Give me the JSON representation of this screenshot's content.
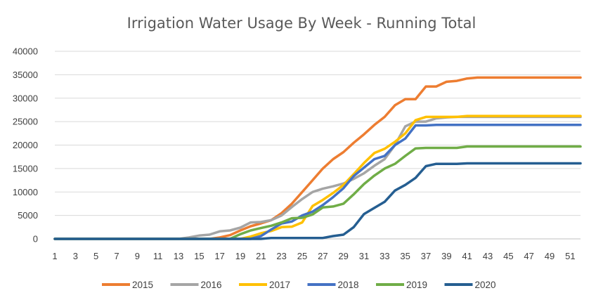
{
  "chart_data": {
    "type": "line",
    "title": "Irrigation Water Usage By Week - Running Total",
    "xlabel": "",
    "ylabel": "",
    "ylim": [
      0,
      40000
    ],
    "y_ticks": [
      "0",
      "5000",
      "10000",
      "15000",
      "20000",
      "25000",
      "30000",
      "35000",
      "40000"
    ],
    "x": [
      1,
      2,
      3,
      4,
      5,
      6,
      7,
      8,
      9,
      10,
      11,
      12,
      13,
      14,
      15,
      16,
      17,
      18,
      19,
      20,
      21,
      22,
      23,
      24,
      25,
      26,
      27,
      28,
      29,
      30,
      31,
      32,
      33,
      34,
      35,
      36,
      37,
      38,
      39,
      40,
      41,
      42,
      43,
      44,
      45,
      46,
      47,
      48,
      49,
      50,
      51,
      52
    ],
    "x_tick_labels": [
      "1",
      "3",
      "5",
      "7",
      "9",
      "11",
      "13",
      "15",
      "17",
      "19",
      "21",
      "23",
      "25",
      "27",
      "29",
      "31",
      "33",
      "35",
      "37",
      "39",
      "41",
      "43",
      "45",
      "47",
      "49",
      "51"
    ],
    "grid": "horizontal",
    "legend_position": "bottom",
    "series": [
      {
        "name": "2015",
        "color": "#ED7D31",
        "values": [
          0,
          0,
          0,
          0,
          0,
          0,
          0,
          0,
          0,
          0,
          0,
          0,
          0,
          0,
          0,
          0,
          300,
          800,
          1800,
          2700,
          3300,
          4000,
          5500,
          7500,
          10000,
          12500,
          15000,
          17000,
          18500,
          20500,
          22300,
          24300,
          26000,
          28500,
          29800,
          29800,
          32500,
          32500,
          33500,
          33700,
          34200,
          34400,
          34400,
          34400,
          34400,
          34400,
          34400,
          34400,
          34400,
          34400,
          34400,
          34400
        ]
      },
      {
        "name": "2016",
        "color": "#A5A5A5",
        "values": [
          0,
          0,
          0,
          0,
          0,
          0,
          0,
          0,
          0,
          0,
          0,
          0,
          0,
          300,
          700,
          900,
          1600,
          1800,
          2400,
          3500,
          3600,
          4000,
          5000,
          6800,
          8500,
          10000,
          10700,
          11200,
          11800,
          12800,
          14000,
          15600,
          17000,
          20000,
          24000,
          25000,
          25000,
          25700,
          25900,
          26000,
          26000,
          26000,
          26000,
          26000,
          26000,
          26000,
          26000,
          26000,
          26000,
          26000,
          26000,
          26000
        ]
      },
      {
        "name": "2017",
        "color": "#FFC000",
        "values": [
          0,
          0,
          0,
          0,
          0,
          0,
          0,
          0,
          0,
          0,
          0,
          0,
          0,
          0,
          0,
          0,
          0,
          0,
          0,
          500,
          1200,
          1700,
          2500,
          2600,
          3500,
          7000,
          8300,
          9800,
          11500,
          13800,
          16200,
          18300,
          19200,
          20700,
          22500,
          25300,
          26000,
          26000,
          26000,
          26000,
          26200,
          26200,
          26200,
          26200,
          26200,
          26200,
          26200,
          26200,
          26200,
          26200,
          26200,
          26200
        ]
      },
      {
        "name": "2018",
        "color": "#4472C4",
        "values": [
          0,
          0,
          0,
          0,
          0,
          0,
          0,
          0,
          0,
          0,
          0,
          0,
          0,
          0,
          0,
          0,
          0,
          0,
          0,
          0,
          600,
          2000,
          3300,
          3700,
          5000,
          5800,
          7200,
          8900,
          10800,
          13400,
          15200,
          17000,
          17700,
          20000,
          21400,
          24200,
          24200,
          24300,
          24300,
          24300,
          24300,
          24300,
          24300,
          24300,
          24300,
          24300,
          24300,
          24300,
          24300,
          24300,
          24300,
          24300
        ]
      },
      {
        "name": "2019",
        "color": "#70AD47",
        "values": [
          0,
          0,
          0,
          0,
          0,
          0,
          0,
          0,
          0,
          0,
          0,
          0,
          0,
          0,
          0,
          0,
          0,
          0,
          1000,
          1800,
          2300,
          2800,
          3500,
          4400,
          4500,
          5200,
          6700,
          6900,
          7500,
          9500,
          11700,
          13500,
          15000,
          16000,
          17700,
          19300,
          19400,
          19400,
          19400,
          19400,
          19700,
          19700,
          19700,
          19700,
          19700,
          19700,
          19700,
          19700,
          19700,
          19700,
          19700,
          19700
        ]
      },
      {
        "name": "2020",
        "color": "#255E91",
        "values": [
          0,
          0,
          0,
          0,
          0,
          0,
          0,
          0,
          0,
          0,
          0,
          0,
          0,
          0,
          0,
          0,
          0,
          0,
          0,
          0,
          0,
          200,
          200,
          200,
          200,
          200,
          200,
          600,
          900,
          2500,
          5300,
          6600,
          7900,
          10300,
          11500,
          13000,
          15500,
          16000,
          16000,
          16000,
          16100,
          16100,
          16100,
          16100,
          16100,
          16100,
          16100,
          16100,
          16100,
          16100,
          16100,
          16100
        ]
      }
    ]
  }
}
